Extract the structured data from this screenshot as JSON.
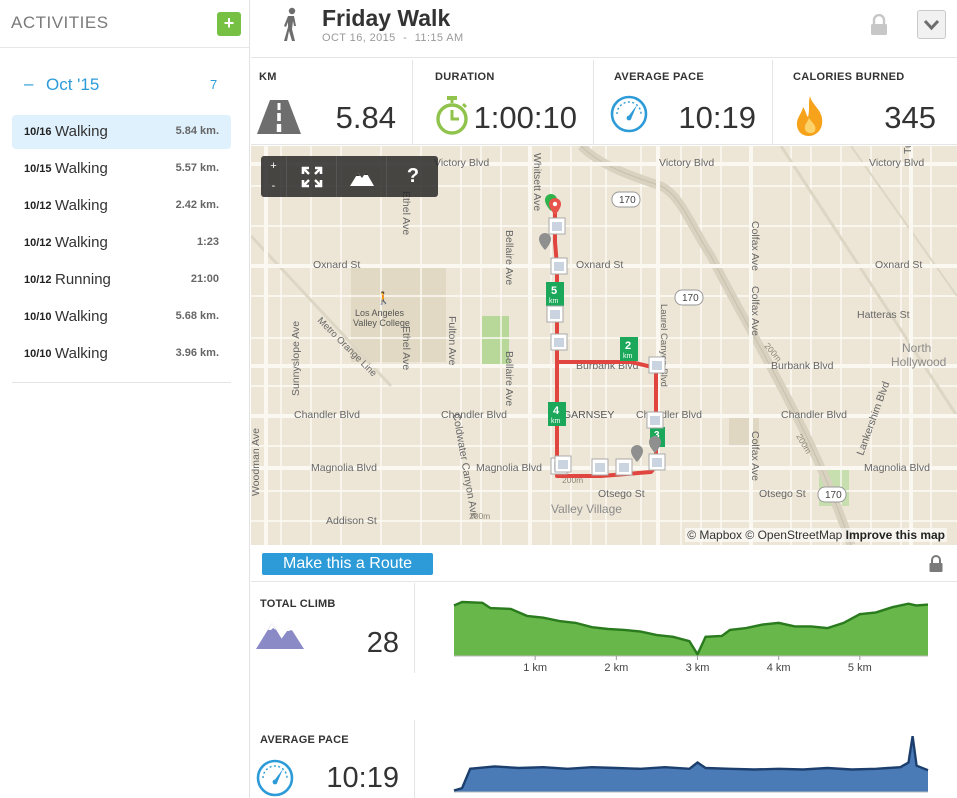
{
  "sidebar": {
    "title": "ACTIVITIES",
    "add_label": "+",
    "month": {
      "dash": "–",
      "label": "Oct '15",
      "count": "7"
    },
    "activities": [
      {
        "date": "10/16",
        "type": "Walking",
        "value": "5.84 km."
      },
      {
        "date": "10/15",
        "type": "Walking",
        "value": "5.57 km."
      },
      {
        "date": "10/12",
        "type": "Walking",
        "value": "2.42 km."
      },
      {
        "date": "10/12",
        "type": "Walking",
        "value": "1:23"
      },
      {
        "date": "10/12",
        "type": "Running",
        "value": "21:00"
      },
      {
        "date": "10/10",
        "type": "Walking",
        "value": "5.68 km."
      },
      {
        "date": "10/10",
        "type": "Walking",
        "value": "3.96 km."
      }
    ]
  },
  "header": {
    "title": "Friday Walk",
    "date": "OCT 16, 2015",
    "sep": "-",
    "time": "11:15 AM"
  },
  "stats": {
    "km": {
      "label": "KM",
      "value": "5.84"
    },
    "duration": {
      "label": "DURATION",
      "value": "1:00:10"
    },
    "pace": {
      "label": "AVERAGE PACE",
      "value": "10:19"
    },
    "calories": {
      "label": "CALORIES BURNED",
      "value": "345"
    }
  },
  "map": {
    "controls": {
      "zoom_in": "+",
      "zoom_out": "-",
      "help": "?"
    },
    "attribution": {
      "mapbox": "© Mapbox",
      "osm": "© OpenStreetMap",
      "improve": "Improve this map"
    },
    "labels": {
      "victory_1": "Victory Blvd",
      "victory_2": "Victory Blvd",
      "victory_3": "Victory Blvd",
      "oxnard_1": "Oxnard St",
      "oxnard_2": "Oxnard St",
      "oxnard_3": "Oxnard St",
      "burbank_1": "Burbank Blvd",
      "burbank_2": "Burbank Blvd",
      "chandler_1": "Chandler Blvd",
      "chandler_2": "Chandler Blvd",
      "chandler_3": "Chandler Blvd",
      "chandler_4": "Chandler Blvd",
      "magnolia_1": "Magnolia Blvd",
      "magnolia_2": "Magnolia Blvd",
      "magnolia_3": "Magnolia Blvd",
      "otsego_1": "Otsego St",
      "otsego_2": "Otsego St",
      "addison": "Addison St",
      "hatteras": "Hatteras St",
      "north_hollywood_1": "North",
      "north_hollywood_2": "Hollywood",
      "lavc_1": "Los Angeles",
      "lavc_2": "Valley College",
      "garnsey": "GARNSEY",
      "valley_village": "Valley Village",
      "whitsett": "Whitsett Ave",
      "bellaire": "Bellaire Ave",
      "ethel": "Ethel Ave",
      "fulton": "Fulton Ave",
      "coldwater": "Coldwater Canyon Ave",
      "colfax": "Colfax Ave",
      "tujunga": "Tujunga Ave",
      "lankershim": "Lankershim Blvd",
      "woodman": "Woodman Ave",
      "sunnyslope": "Sunnyslope Ave",
      "metro_orange": "Metro Orange Line",
      "laurel_canyon": "Laurel Canyon Blvd",
      "shield_1": "170",
      "shield_2": "170",
      "shield_3": "170",
      "m200_1": "200m",
      "m200_2": "200m",
      "m200_3": "200m",
      "m200_4": "200m",
      "km_2": "2",
      "km_4": "4",
      "km_5": "5",
      "km_3": "3",
      "km_unit": "km"
    }
  },
  "route": {
    "button_label": "Make this a Route"
  },
  "total_climb": {
    "label": "TOTAL CLIMB",
    "value": "28"
  },
  "average_pace": {
    "label": "AVERAGE PACE",
    "value": "10:19"
  },
  "chart_data": [
    {
      "type": "area",
      "title": "TOTAL CLIMB",
      "color": "#68b74a",
      "stroke": "#2a7a1e",
      "x_ticks": [
        "1 km",
        "2 km",
        "3 km",
        "4 km",
        "5 km"
      ],
      "x_tick_values": [
        1,
        2,
        3,
        4,
        5
      ],
      "xlim": [
        0,
        5.84
      ],
      "ylim": [
        0,
        70
      ],
      "x": [
        0,
        0.1,
        0.35,
        0.45,
        0.7,
        0.9,
        1.1,
        1.3,
        1.5,
        1.7,
        1.9,
        2.1,
        2.3,
        2.5,
        2.7,
        2.9,
        3.0,
        3.1,
        3.3,
        3.4,
        3.6,
        3.8,
        4.0,
        4.2,
        4.4,
        4.6,
        4.8,
        5.0,
        5.2,
        5.4,
        5.6,
        5.7,
        5.84
      ],
      "values": [
        58,
        62,
        61,
        55,
        54,
        46,
        44,
        40,
        38,
        33,
        31,
        30,
        28,
        24,
        22,
        17,
        2,
        22,
        23,
        30,
        32,
        36,
        38,
        34,
        34,
        32,
        38,
        48,
        50,
        56,
        60,
        58,
        59
      ]
    },
    {
      "type": "area",
      "title": "AVERAGE PACE",
      "color": "#4a7bb7",
      "stroke": "#1d3f6e",
      "xlim": [
        0,
        5.84
      ],
      "ylim": [
        0,
        80
      ],
      "x": [
        0,
        0.1,
        0.2,
        0.5,
        0.8,
        1.1,
        1.4,
        1.7,
        2.0,
        2.3,
        2.6,
        2.9,
        3.0,
        3.1,
        3.4,
        3.7,
        4.0,
        4.3,
        4.6,
        4.9,
        5.2,
        5.5,
        5.6,
        5.65,
        5.7,
        5.84
      ],
      "values": [
        2,
        5,
        30,
        33,
        31,
        32,
        30,
        32,
        31,
        30,
        32,
        30,
        38,
        31,
        30,
        29,
        30,
        29,
        31,
        29,
        30,
        32,
        38,
        72,
        34,
        28
      ]
    }
  ],
  "colors": {
    "accent": "#2d9bd8",
    "green": "#76c043",
    "selected": "#def1fd",
    "route": "#e0463f"
  }
}
